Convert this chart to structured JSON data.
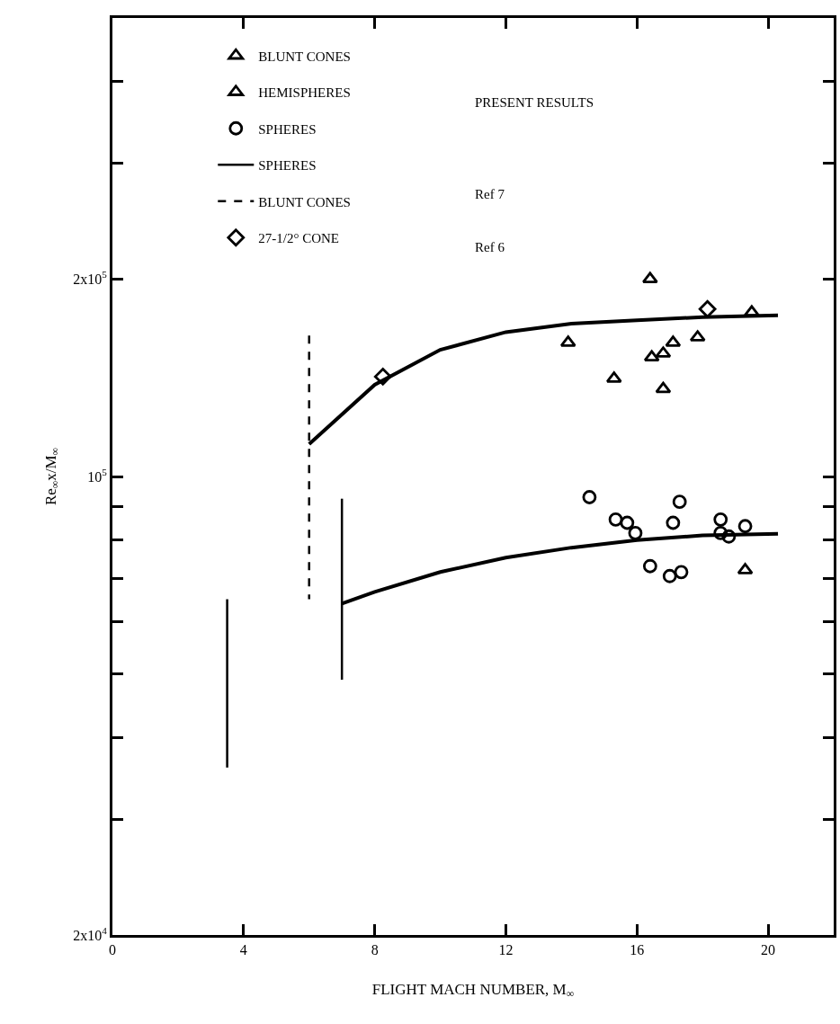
{
  "chart_data": {
    "type": "scatter",
    "xlabel": "FLIGHT MACH NUMBER, M$_{∞}$",
    "ylabel": "Re$_{∞}$x/M$_{∞}$",
    "xlim": [
      0,
      22
    ],
    "xticks": [
      0,
      4,
      8,
      12,
      16,
      20
    ],
    "ylim": [
      20000,
      500000
    ],
    "yticks": [
      {
        "value": 20000,
        "label": "2x10$^{4}$"
      },
      {
        "value": 30000,
        "label": null
      },
      {
        "value": 40000,
        "label": null
      },
      {
        "value": 50000,
        "label": null
      },
      {
        "value": 60000,
        "label": null
      },
      {
        "value": 70000,
        "label": null
      },
      {
        "value": 80000,
        "label": null
      },
      {
        "value": 90000,
        "label": null
      },
      {
        "value": 100000,
        "label": "10$^{5}$"
      },
      {
        "value": 200000,
        "label": "2x10$^{5}$"
      },
      {
        "value": 300000,
        "label": null
      },
      {
        "value": 400000,
        "label": null
      }
    ],
    "log": "y",
    "legend": "top left",
    "annotations": [
      "PRESENT RESULTS",
      "Ref 7",
      "Ref 6"
    ],
    "series": [
      {
        "name": "BLUNT CONES",
        "marker": "triangle",
        "color": "#000000",
        "x": [
          16.4,
          13.9,
          19.5,
          17.85,
          17.1,
          16.8,
          16.45,
          15.3,
          16.8
        ],
        "values": [
          200000,
          160000,
          178000,
          163000,
          160000,
          154000,
          152000,
          141000,
          136000
        ]
      },
      {
        "name": "HEMISPHERES",
        "marker": "triangle",
        "color": "#000000",
        "x": [
          19.3
        ],
        "values": [
          72000
        ]
      },
      {
        "name": "SPHERES",
        "marker": "circle",
        "color": "#000000",
        "x": [
          14.55,
          17.3,
          15.35,
          15.7,
          15.95,
          17.1,
          18.55,
          18.55,
          18.8,
          19.3,
          16.4,
          17.0,
          17.35
        ],
        "values": [
          93000,
          91500,
          86000,
          85000,
          82000,
          85000,
          86000,
          82000,
          81000,
          84000,
          73000,
          70500,
          71500
        ]
      },
      {
        "name": "SPHERES",
        "type": "line",
        "marker": "none",
        "line_style": "solid",
        "color": "#000000",
        "x": [
          3.5,
          3.5,
          null,
          7,
          7
        ],
        "values": [
          65000,
          36000,
          null,
          92500,
          49000
        ]
      },
      {
        "name": "BLUNT CONES",
        "type": "line",
        "marker": "none",
        "line_style": "dashed",
        "color": "#000000",
        "x": [
          6,
          6
        ],
        "values": [
          164000,
          65000
        ]
      },
      {
        "name": "27-1/2° CONE",
        "marker": "diamond",
        "color": "#000000",
        "x": [
          8.25,
          18.15
        ],
        "values": [
          142000,
          180000
        ]
      },
      {
        "type": "line",
        "marker": "none",
        "line_style": "solid",
        "color": "#000000",
        "x": [
          6,
          8,
          10,
          12,
          14,
          16,
          18,
          20.3
        ],
        "values": [
          112000,
          138000,
          156000,
          166000,
          171000,
          173000,
          175000,
          176000
        ]
      },
      {
        "type": "line",
        "marker": "none",
        "line_style": "solid",
        "color": "#000000",
        "x": [
          7,
          8,
          10,
          12,
          14,
          16,
          18,
          20.3
        ],
        "values": [
          64000,
          66700,
          71500,
          75200,
          77900,
          80000,
          81300,
          81800
        ]
      }
    ]
  }
}
